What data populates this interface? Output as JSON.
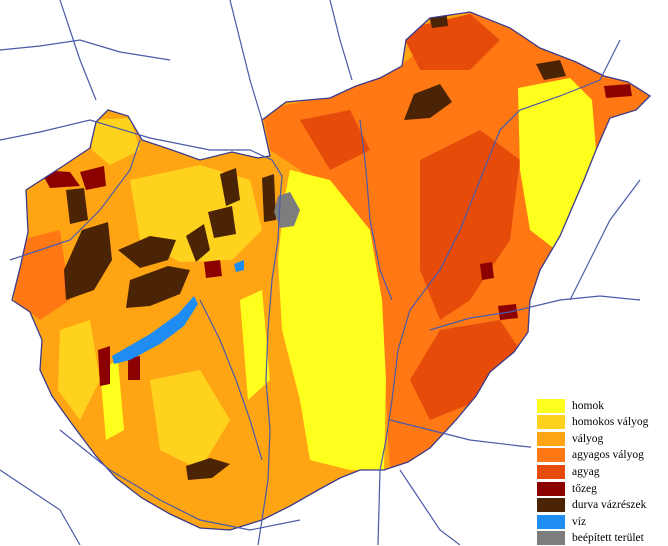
{
  "colors": {
    "background": "#ffffff",
    "rivers": "#4a5aa8",
    "border": "#3a3a8a"
  },
  "legend": {
    "items": [
      {
        "key": "homok",
        "label": "homok",
        "color": "#ffff1e"
      },
      {
        "key": "homokos-valyog",
        "label": "homokos vályog",
        "color": "#ffd21e"
      },
      {
        "key": "valyog",
        "label": "vályog",
        "color": "#ffa514"
      },
      {
        "key": "agyagos-valyog",
        "label": "agyagos vályog",
        "color": "#ff7814"
      },
      {
        "key": "agyag",
        "label": "agyag",
        "color": "#e64b0a"
      },
      {
        "key": "tozeg",
        "label": "tőzeg",
        "color": "#8c0000"
      },
      {
        "key": "durva-vazreszek",
        "label": "durva vázrészek",
        "color": "#4b2305"
      },
      {
        "key": "viz",
        "label": "víz",
        "color": "#1e8cf0"
      },
      {
        "key": "beepitett-terulet",
        "label": "beépített terület",
        "color": "#7d7d7d"
      }
    ]
  }
}
